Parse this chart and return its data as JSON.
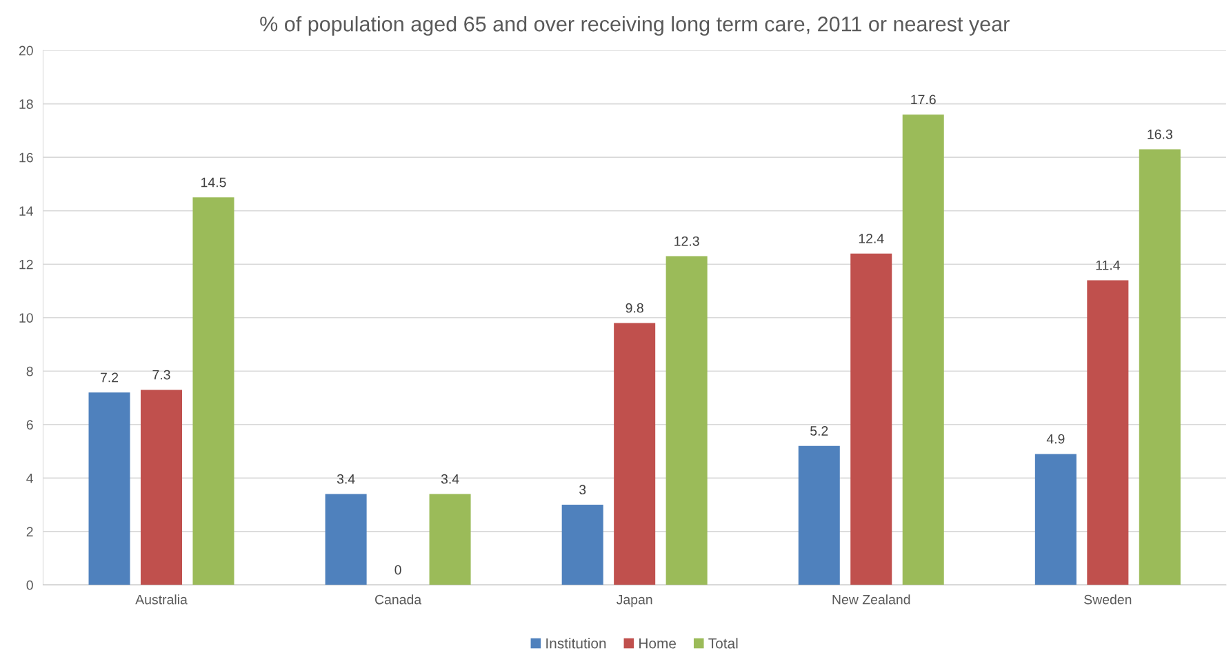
{
  "chart_data": {
    "type": "bar",
    "title": "% of population aged 65 and over receiving long term care, 2011 or nearest year",
    "categories": [
      "Australia",
      "Canada",
      "Japan",
      "New Zealand",
      "Sweden"
    ],
    "series": [
      {
        "name": "Institution",
        "color": "#4f81bd",
        "values": [
          7.2,
          3.4,
          3,
          5.2,
          4.9
        ]
      },
      {
        "name": "Home",
        "color": "#c0504d",
        "values": [
          7.3,
          0,
          9.8,
          12.4,
          11.4
        ]
      },
      {
        "name": "Total",
        "color": "#9bbb59",
        "values": [
          14.5,
          3.4,
          12.3,
          17.6,
          16.3
        ]
      }
    ],
    "ylim": [
      0,
      20
    ],
    "yticks": [
      0,
      2,
      4,
      6,
      8,
      10,
      12,
      14,
      16,
      18,
      20
    ],
    "grid": "y",
    "legend": "bottom",
    "data_labels": true
  }
}
